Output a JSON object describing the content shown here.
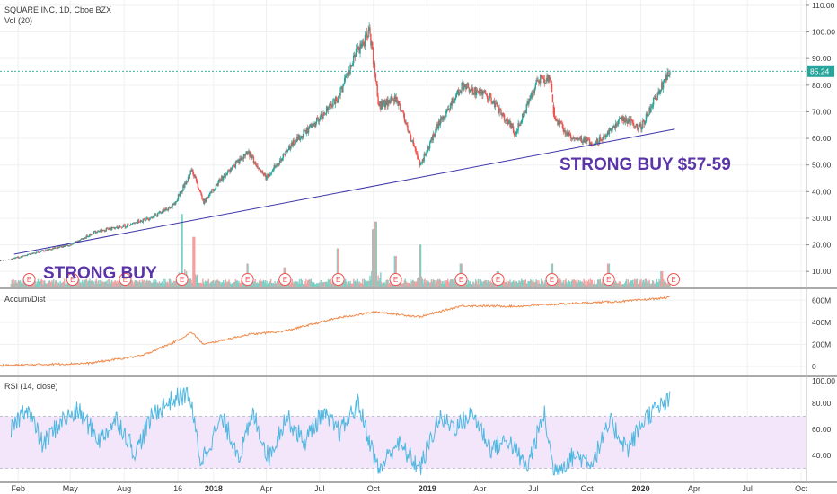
{
  "colors": {
    "up": "#26a69a",
    "down": "#ef5350",
    "vol_up": "#7fcfc6",
    "vol_down": "#f2a0a0",
    "trendline": "#3c36a8",
    "annotation": "#5b35a8",
    "accum": "#f08a4b",
    "rsi": "#4fb8e0",
    "rsi_band": "#f3e6fb",
    "price_line": "#26a69a",
    "earnings": "#ef5350",
    "grid": "#eef0f3",
    "axis_text": "#3a3a3a"
  },
  "chart_data": {
    "type": "line",
    "title": "SQUARE INC, 1D, Cboe BZX",
    "price_panel": {
      "ylim": [
        4,
        112
      ],
      "yticks": [
        "10.00",
        "20.00",
        "30.00",
        "40.00",
        "50.00",
        "60.00",
        "70.00",
        "80.00",
        "90.00",
        "100.00",
        "110.00"
      ],
      "last_price": "85.24",
      "series_note": "daily OHLC candles",
      "key_points": [
        {
          "x": "2017-01-20",
          "y": 14.5
        },
        {
          "x": "2017-03-01",
          "y": 17
        },
        {
          "x": "2017-05-01",
          "y": 20
        },
        {
          "x": "2017-06-15",
          "y": 25
        },
        {
          "x": "2017-08-01",
          "y": 27
        },
        {
          "x": "2017-09-15",
          "y": 30
        },
        {
          "x": "2017-10-25",
          "y": 35
        },
        {
          "x": "2017-11-25",
          "y": 48
        },
        {
          "x": "2017-12-15",
          "y": 36
        },
        {
          "x": "2018-01-15",
          "y": 45
        },
        {
          "x": "2018-03-01",
          "y": 55
        },
        {
          "x": "2018-04-01",
          "y": 45
        },
        {
          "x": "2018-05-15",
          "y": 58
        },
        {
          "x": "2018-06-20",
          "y": 65
        },
        {
          "x": "2018-08-01",
          "y": 75
        },
        {
          "x": "2018-09-01",
          "y": 92
        },
        {
          "x": "2018-09-25",
          "y": 100
        },
        {
          "x": "2018-10-10",
          "y": 72
        },
        {
          "x": "2018-11-10",
          "y": 75
        },
        {
          "x": "2018-12-20",
          "y": 50
        },
        {
          "x": "2019-01-20",
          "y": 65
        },
        {
          "x": "2019-03-01",
          "y": 80
        },
        {
          "x": "2019-04-15",
          "y": 76
        },
        {
          "x": "2019-06-01",
          "y": 62
        },
        {
          "x": "2019-07-10",
          "y": 82
        },
        {
          "x": "2019-07-31",
          "y": 82
        },
        {
          "x": "2019-08-05",
          "y": 68
        },
        {
          "x": "2019-09-01",
          "y": 61
        },
        {
          "x": "2019-10-15",
          "y": 58
        },
        {
          "x": "2019-12-01",
          "y": 68
        },
        {
          "x": "2020-01-01",
          "y": 64
        },
        {
          "x": "2020-01-25",
          "y": 75
        },
        {
          "x": "2020-02-20",
          "y": 85.24
        }
      ],
      "gap_start": "2019-08-01",
      "trendline": {
        "start": {
          "x": "2017-01-25",
          "y": 16.5
        },
        "end": {
          "x": "2020-02-28",
          "y": 63.5
        }
      }
    },
    "volume": {
      "label": "Vol (20)",
      "spikes": [
        {
          "x": "2017-11-08",
          "h": 0.95
        },
        {
          "x": "2017-11-28",
          "h": 0.65
        },
        {
          "x": "2018-02-28",
          "h": 0.3
        },
        {
          "x": "2018-05-03",
          "h": 0.25
        },
        {
          "x": "2018-08-02",
          "h": 0.5
        },
        {
          "x": "2018-10-01",
          "h": 0.75
        },
        {
          "x": "2018-10-05",
          "h": 0.85
        },
        {
          "x": "2018-11-08",
          "h": 0.4
        },
        {
          "x": "2018-12-20",
          "h": 0.55
        },
        {
          "x": "2019-02-28",
          "h": 0.3
        },
        {
          "x": "2019-05-02",
          "h": 0.2
        },
        {
          "x": "2019-08-02",
          "h": 0.3
        },
        {
          "x": "2019-11-07",
          "h": 0.3
        },
        {
          "x": "2020-02-06",
          "h": 0.2
        }
      ]
    },
    "earnings_dates": [
      "2017-02-20",
      "2017-05-05",
      "2017-08-03",
      "2017-11-08",
      "2018-02-28",
      "2018-05-03",
      "2018-08-02",
      "2018-11-08",
      "2019-02-28",
      "2019-05-02",
      "2019-08-02",
      "2019-11-07",
      "2020-02-26"
    ],
    "earnings_label": "E",
    "accum_dist": {
      "label": "Accum/Dist",
      "ylim": [
        -80,
        700
      ],
      "yticks": [
        "0",
        "200M",
        "400M",
        "600M"
      ],
      "key_points": [
        {
          "x": "2017-01-01",
          "y": 10
        },
        {
          "x": "2017-06-01",
          "y": 30
        },
        {
          "x": "2017-09-01",
          "y": 100
        },
        {
          "x": "2017-10-25",
          "y": 220
        },
        {
          "x": "2017-11-25",
          "y": 310
        },
        {
          "x": "2017-12-15",
          "y": 200
        },
        {
          "x": "2018-03-01",
          "y": 290
        },
        {
          "x": "2018-05-01",
          "y": 320
        },
        {
          "x": "2018-08-01",
          "y": 440
        },
        {
          "x": "2018-10-05",
          "y": 495
        },
        {
          "x": "2018-12-20",
          "y": 450
        },
        {
          "x": "2019-03-01",
          "y": 550
        },
        {
          "x": "2019-06-01",
          "y": 545
        },
        {
          "x": "2019-09-01",
          "y": 570
        },
        {
          "x": "2019-12-01",
          "y": 590
        },
        {
          "x": "2020-02-20",
          "y": 625
        }
      ]
    },
    "rsi": {
      "label": "RSI (14, close)",
      "ylim": [
        20,
        100
      ],
      "yticks": [
        "40.00",
        "60.00",
        "80.00"
      ],
      "top_tick": "100.00",
      "upper_band": 70,
      "lower_band": 30,
      "key_points": [
        {
          "x": "2017-01-15",
          "y": 55
        },
        {
          "x": "2017-02-15",
          "y": 78
        },
        {
          "x": "2017-03-15",
          "y": 48
        },
        {
          "x": "2017-04-15",
          "y": 66
        },
        {
          "x": "2017-05-15",
          "y": 74
        },
        {
          "x": "2017-06-20",
          "y": 52
        },
        {
          "x": "2017-07-20",
          "y": 68
        },
        {
          "x": "2017-08-20",
          "y": 42
        },
        {
          "x": "2017-09-20",
          "y": 72
        },
        {
          "x": "2017-10-20",
          "y": 82
        },
        {
          "x": "2017-11-20",
          "y": 88
        },
        {
          "x": "2017-12-10",
          "y": 35
        },
        {
          "x": "2018-01-15",
          "y": 68
        },
        {
          "x": "2018-02-15",
          "y": 40
        },
        {
          "x": "2018-03-10",
          "y": 72
        },
        {
          "x": "2018-04-05",
          "y": 38
        },
        {
          "x": "2018-05-05",
          "y": 70
        },
        {
          "x": "2018-06-05",
          "y": 50
        },
        {
          "x": "2018-07-05",
          "y": 72
        },
        {
          "x": "2018-08-05",
          "y": 58
        },
        {
          "x": "2018-09-05",
          "y": 80
        },
        {
          "x": "2018-10-10",
          "y": 28
        },
        {
          "x": "2018-11-10",
          "y": 50
        },
        {
          "x": "2018-12-20",
          "y": 30
        },
        {
          "x": "2019-01-20",
          "y": 68
        },
        {
          "x": "2019-02-20",
          "y": 62
        },
        {
          "x": "2019-03-20",
          "y": 72
        },
        {
          "x": "2019-04-20",
          "y": 45
        },
        {
          "x": "2019-05-20",
          "y": 52
        },
        {
          "x": "2019-06-20",
          "y": 30
        },
        {
          "x": "2019-07-20",
          "y": 72
        },
        {
          "x": "2019-08-05",
          "y": 28
        },
        {
          "x": "2019-09-10",
          "y": 40
        },
        {
          "x": "2019-10-10",
          "y": 35
        },
        {
          "x": "2019-11-10",
          "y": 65
        },
        {
          "x": "2019-12-10",
          "y": 45
        },
        {
          "x": "2020-01-10",
          "y": 70
        },
        {
          "x": "2020-02-20",
          "y": 82
        }
      ]
    },
    "x_axis": {
      "range": [
        "2017-01-01",
        "2020-10-10"
      ],
      "ticks": [
        {
          "x": "2017-02-01",
          "label": "Feb"
        },
        {
          "x": "2017-05-01",
          "label": "May"
        },
        {
          "x": "2017-08-01",
          "label": "Aug"
        },
        {
          "x": "2017-11-01",
          "label": "16"
        },
        {
          "x": "2018-01-01",
          "label": "2018"
        },
        {
          "x": "2018-04-01",
          "label": "Apr"
        },
        {
          "x": "2018-07-01",
          "label": "Jul"
        },
        {
          "x": "2018-10-01",
          "label": "Oct"
        },
        {
          "x": "2019-01-01",
          "label": "2019"
        },
        {
          "x": "2019-04-01",
          "label": "Apr"
        },
        {
          "x": "2019-07-01",
          "label": "Jul"
        },
        {
          "x": "2019-10-01",
          "label": "Oct"
        },
        {
          "x": "2020-01-01",
          "label": "2020"
        },
        {
          "x": "2020-04-01",
          "label": "Apr"
        },
        {
          "x": "2020-07-01",
          "label": "Jul"
        },
        {
          "x": "2020-10-01",
          "label": "Oct"
        }
      ]
    },
    "annotations": [
      {
        "text": "STRONG BUY",
        "x": "2017-03-01",
        "y": 7
      },
      {
        "text": "STRONG BUY $57-59",
        "x": "2019-08-25",
        "y": 49
      }
    ]
  }
}
